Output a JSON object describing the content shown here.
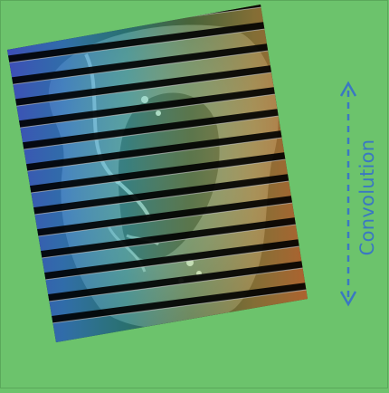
{
  "annotation": {
    "label": "Convolution",
    "color": "#3a78c2"
  },
  "scan": {
    "slice_count": 14,
    "heatmap_colors": [
      "#4a55d8",
      "#3fa0e0",
      "#58d6c8",
      "#b8dc6a",
      "#f0c060",
      "#f07a3a"
    ]
  },
  "background_color": "#6cc36c"
}
